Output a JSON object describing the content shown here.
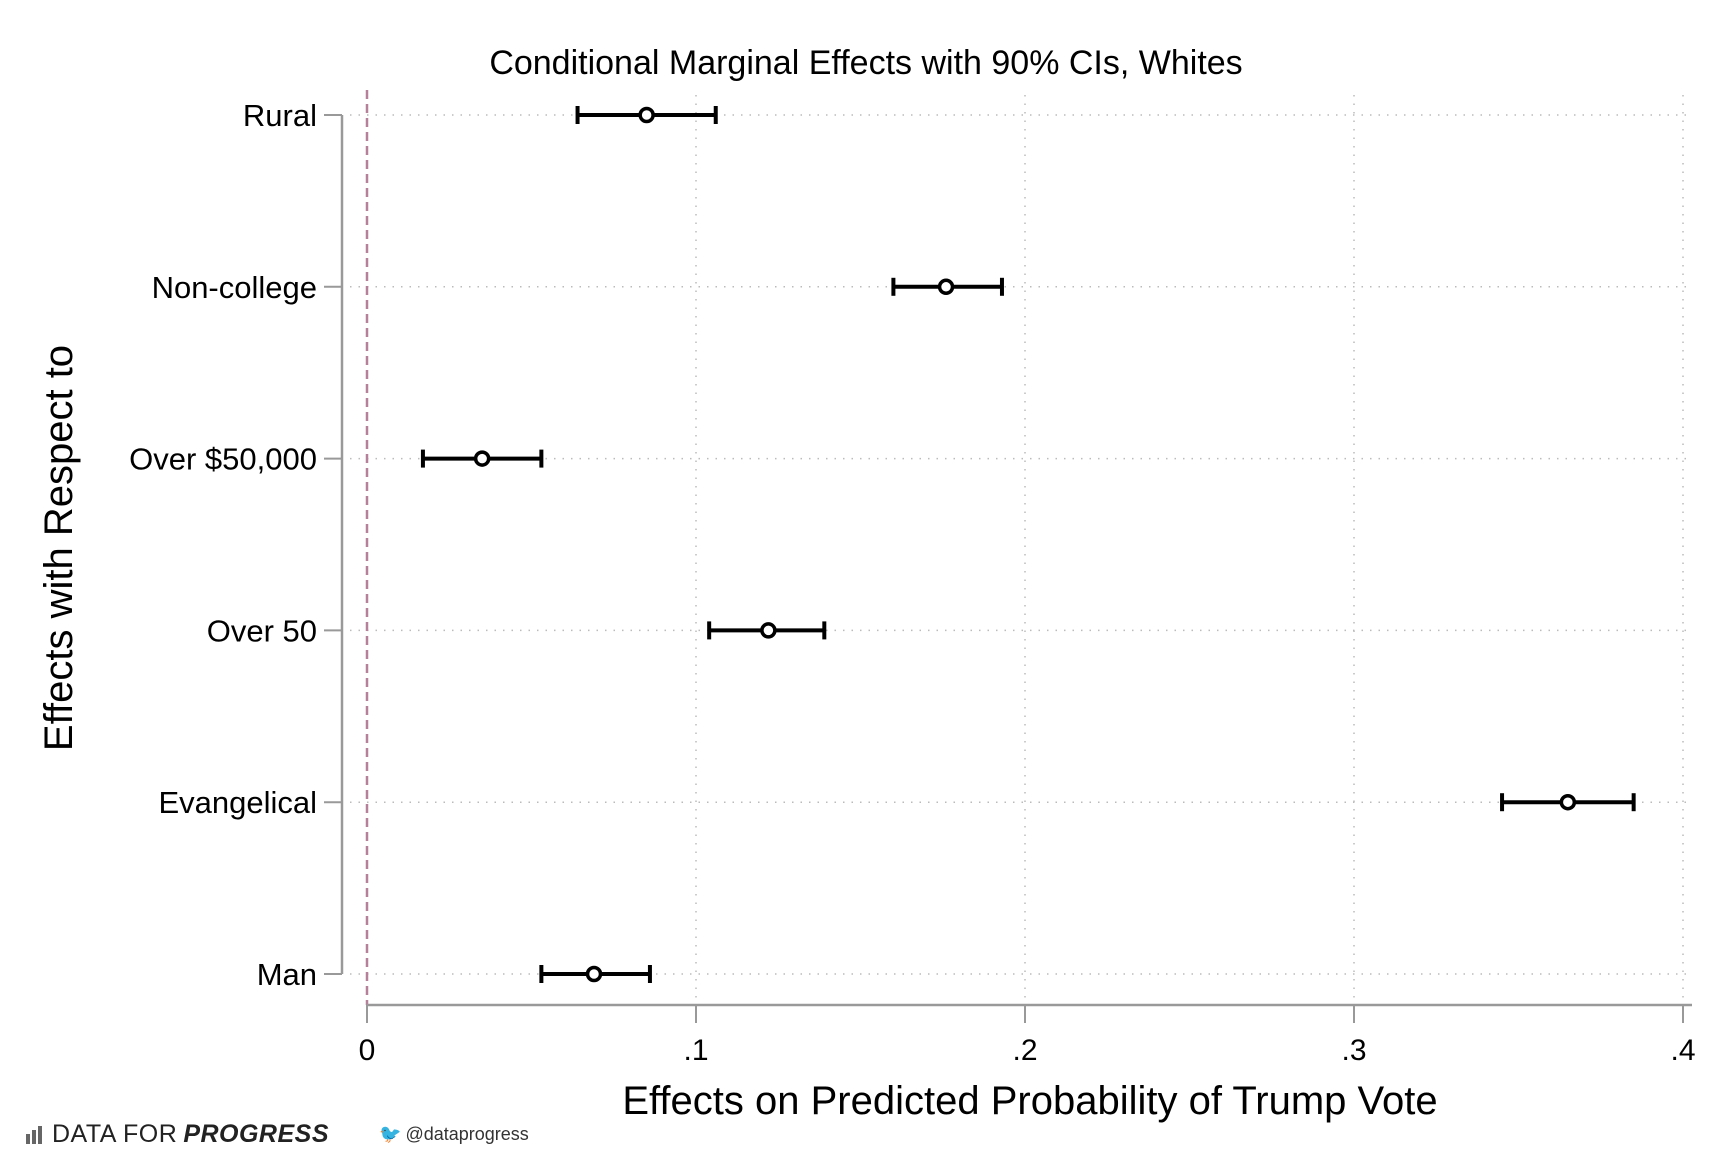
{
  "chart_data": {
    "type": "scatter",
    "subtype": "coefficient-plot-with-error-bars",
    "title": "Conditional Marginal Effects with 90% CIs, Whites",
    "xlabel": "Effects on Predicted Probability of Trump Vote",
    "ylabel": "Effects with Respect to",
    "xlim": [
      0,
      0.4
    ],
    "xticks": [
      0,
      0.1,
      0.2,
      0.3,
      0.4
    ],
    "xtick_labels": [
      "0",
      ".1",
      ".2",
      ".3",
      ".4"
    ],
    "grid": true,
    "reference_line": {
      "x": 0,
      "style": "dashed",
      "color": "#b5809a"
    },
    "categories": [
      "Rural",
      "Non-college",
      "Over $50,000",
      "Over 50",
      "Evangelical",
      "Man"
    ],
    "estimates": [
      0.085,
      0.176,
      0.035,
      0.122,
      0.365,
      0.069
    ],
    "ci_lower": [
      0.064,
      0.16,
      0.017,
      0.104,
      0.345,
      0.053
    ],
    "ci_upper": [
      0.106,
      0.193,
      0.053,
      0.139,
      0.385,
      0.086
    ]
  },
  "footer": {
    "brand_plain": "DATA FOR",
    "brand_bold": "PROGRESS",
    "handle": "@dataprogress",
    "brand_icon": "bar-chart-icon",
    "handle_icon": "twitter-bird-icon"
  }
}
